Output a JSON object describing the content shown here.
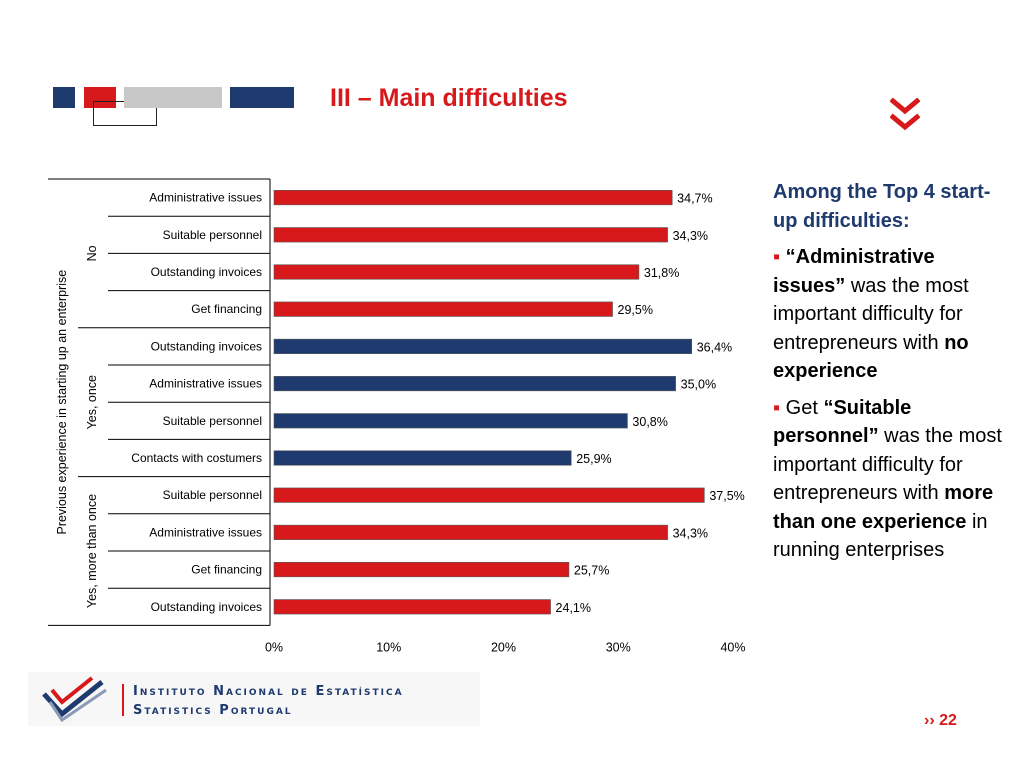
{
  "slide": {
    "title": "III – Main difficulties",
    "page_number": "22",
    "page_marker": "››"
  },
  "colors": {
    "accent_red": "#d7191c",
    "accent_navy": "#1f3a6e",
    "grey": "#c8c8c8"
  },
  "sidebar": {
    "intro": "Among the Top 4 start-up difficulties:",
    "bullet1": {
      "quote": "“Administrative issues”",
      "mid": " was the most important difficulty for entrepreneurs with ",
      "emph": "no experience"
    },
    "bullet2": {
      "lead": "Get ",
      "quote": "“Suitable personnel”",
      "mid": " was the most important difficulty for entrepreneurs with ",
      "emph": "more than one experience",
      "tail": " in running enterprises"
    }
  },
  "logo": {
    "line1": "Instituto Nacional de Estatística",
    "line2": "Statistics Portugal"
  },
  "chart_data": {
    "type": "bar",
    "orientation": "horizontal",
    "y_axis_title": "Previous experience in starting up an enterprise",
    "xlim": [
      0,
      40
    ],
    "x_ticks": [
      "0%",
      "10%",
      "20%",
      "30%",
      "40%"
    ],
    "grid": false,
    "groups": [
      {
        "name": "No",
        "color": "#d7191c",
        "categories": [
          "Administrative issues",
          "Suitable personnel",
          "Outstanding invoices",
          "Get financing"
        ],
        "values": [
          34.7,
          34.3,
          31.8,
          29.5
        ],
        "labels": [
          "34,7%",
          "34,3%",
          "31,8%",
          "29,5%"
        ]
      },
      {
        "name": "Yes, once",
        "color": "#1f3a6e",
        "categories": [
          "Outstanding invoices",
          "Administrative issues",
          "Suitable personnel",
          "Contacts with costumers"
        ],
        "values": [
          36.4,
          35.0,
          30.8,
          25.9
        ],
        "labels": [
          "36,4%",
          "35,0%",
          "30,8%",
          "25,9%"
        ]
      },
      {
        "name": "Yes, more than once",
        "color": "#d7191c",
        "categories": [
          "Suitable personnel",
          "Administrative issues",
          "Get financing",
          "Outstanding invoices"
        ],
        "values": [
          37.5,
          34.3,
          25.7,
          24.1
        ],
        "labels": [
          "37,5%",
          "34,3%",
          "25,7%",
          "24,1%"
        ]
      }
    ]
  }
}
